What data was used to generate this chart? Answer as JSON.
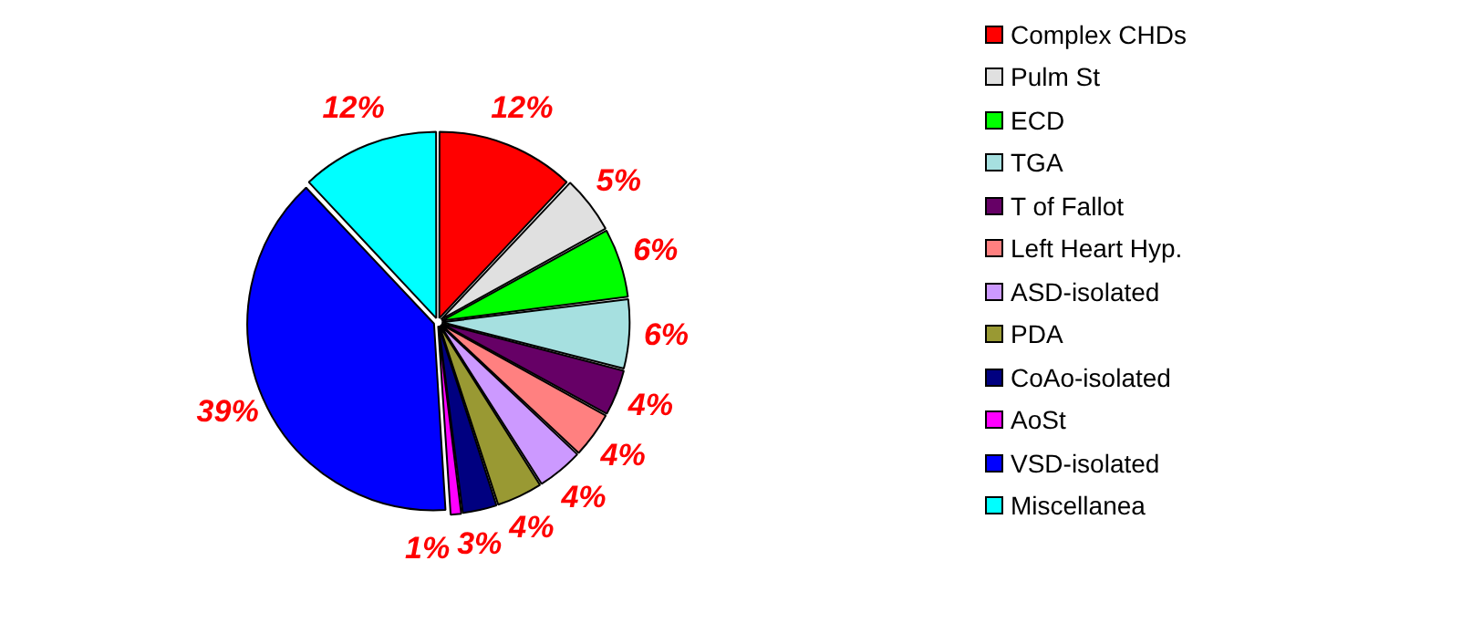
{
  "chart_data": {
    "type": "pie",
    "categories": [
      "Complex CHDs",
      "Pulm St",
      "ECD",
      "TGA",
      "T of Fallot",
      "Left Heart Hyp.",
      "ASD-isolated",
      "PDA",
      "CoAo-isolated",
      "AoSt",
      "VSD-isolated",
      "Miscellanea"
    ],
    "values": [
      12,
      5,
      6,
      6,
      4,
      4,
      4,
      4,
      3,
      1,
      39,
      12
    ],
    "colors": [
      "#ff0000",
      "#e0e0e0",
      "#00ff00",
      "#a6e0e0",
      "#660066",
      "#ff8080",
      "#cc99ff",
      "#999933",
      "#000080",
      "#ff00ff",
      "#0000ff",
      "#00ffff"
    ],
    "value_labels": [
      "12%",
      "5%",
      "6%",
      "6%",
      "4%",
      "4%",
      "4%",
      "4%",
      "3%",
      "1%",
      "39%",
      "12%"
    ],
    "legend": "right"
  }
}
